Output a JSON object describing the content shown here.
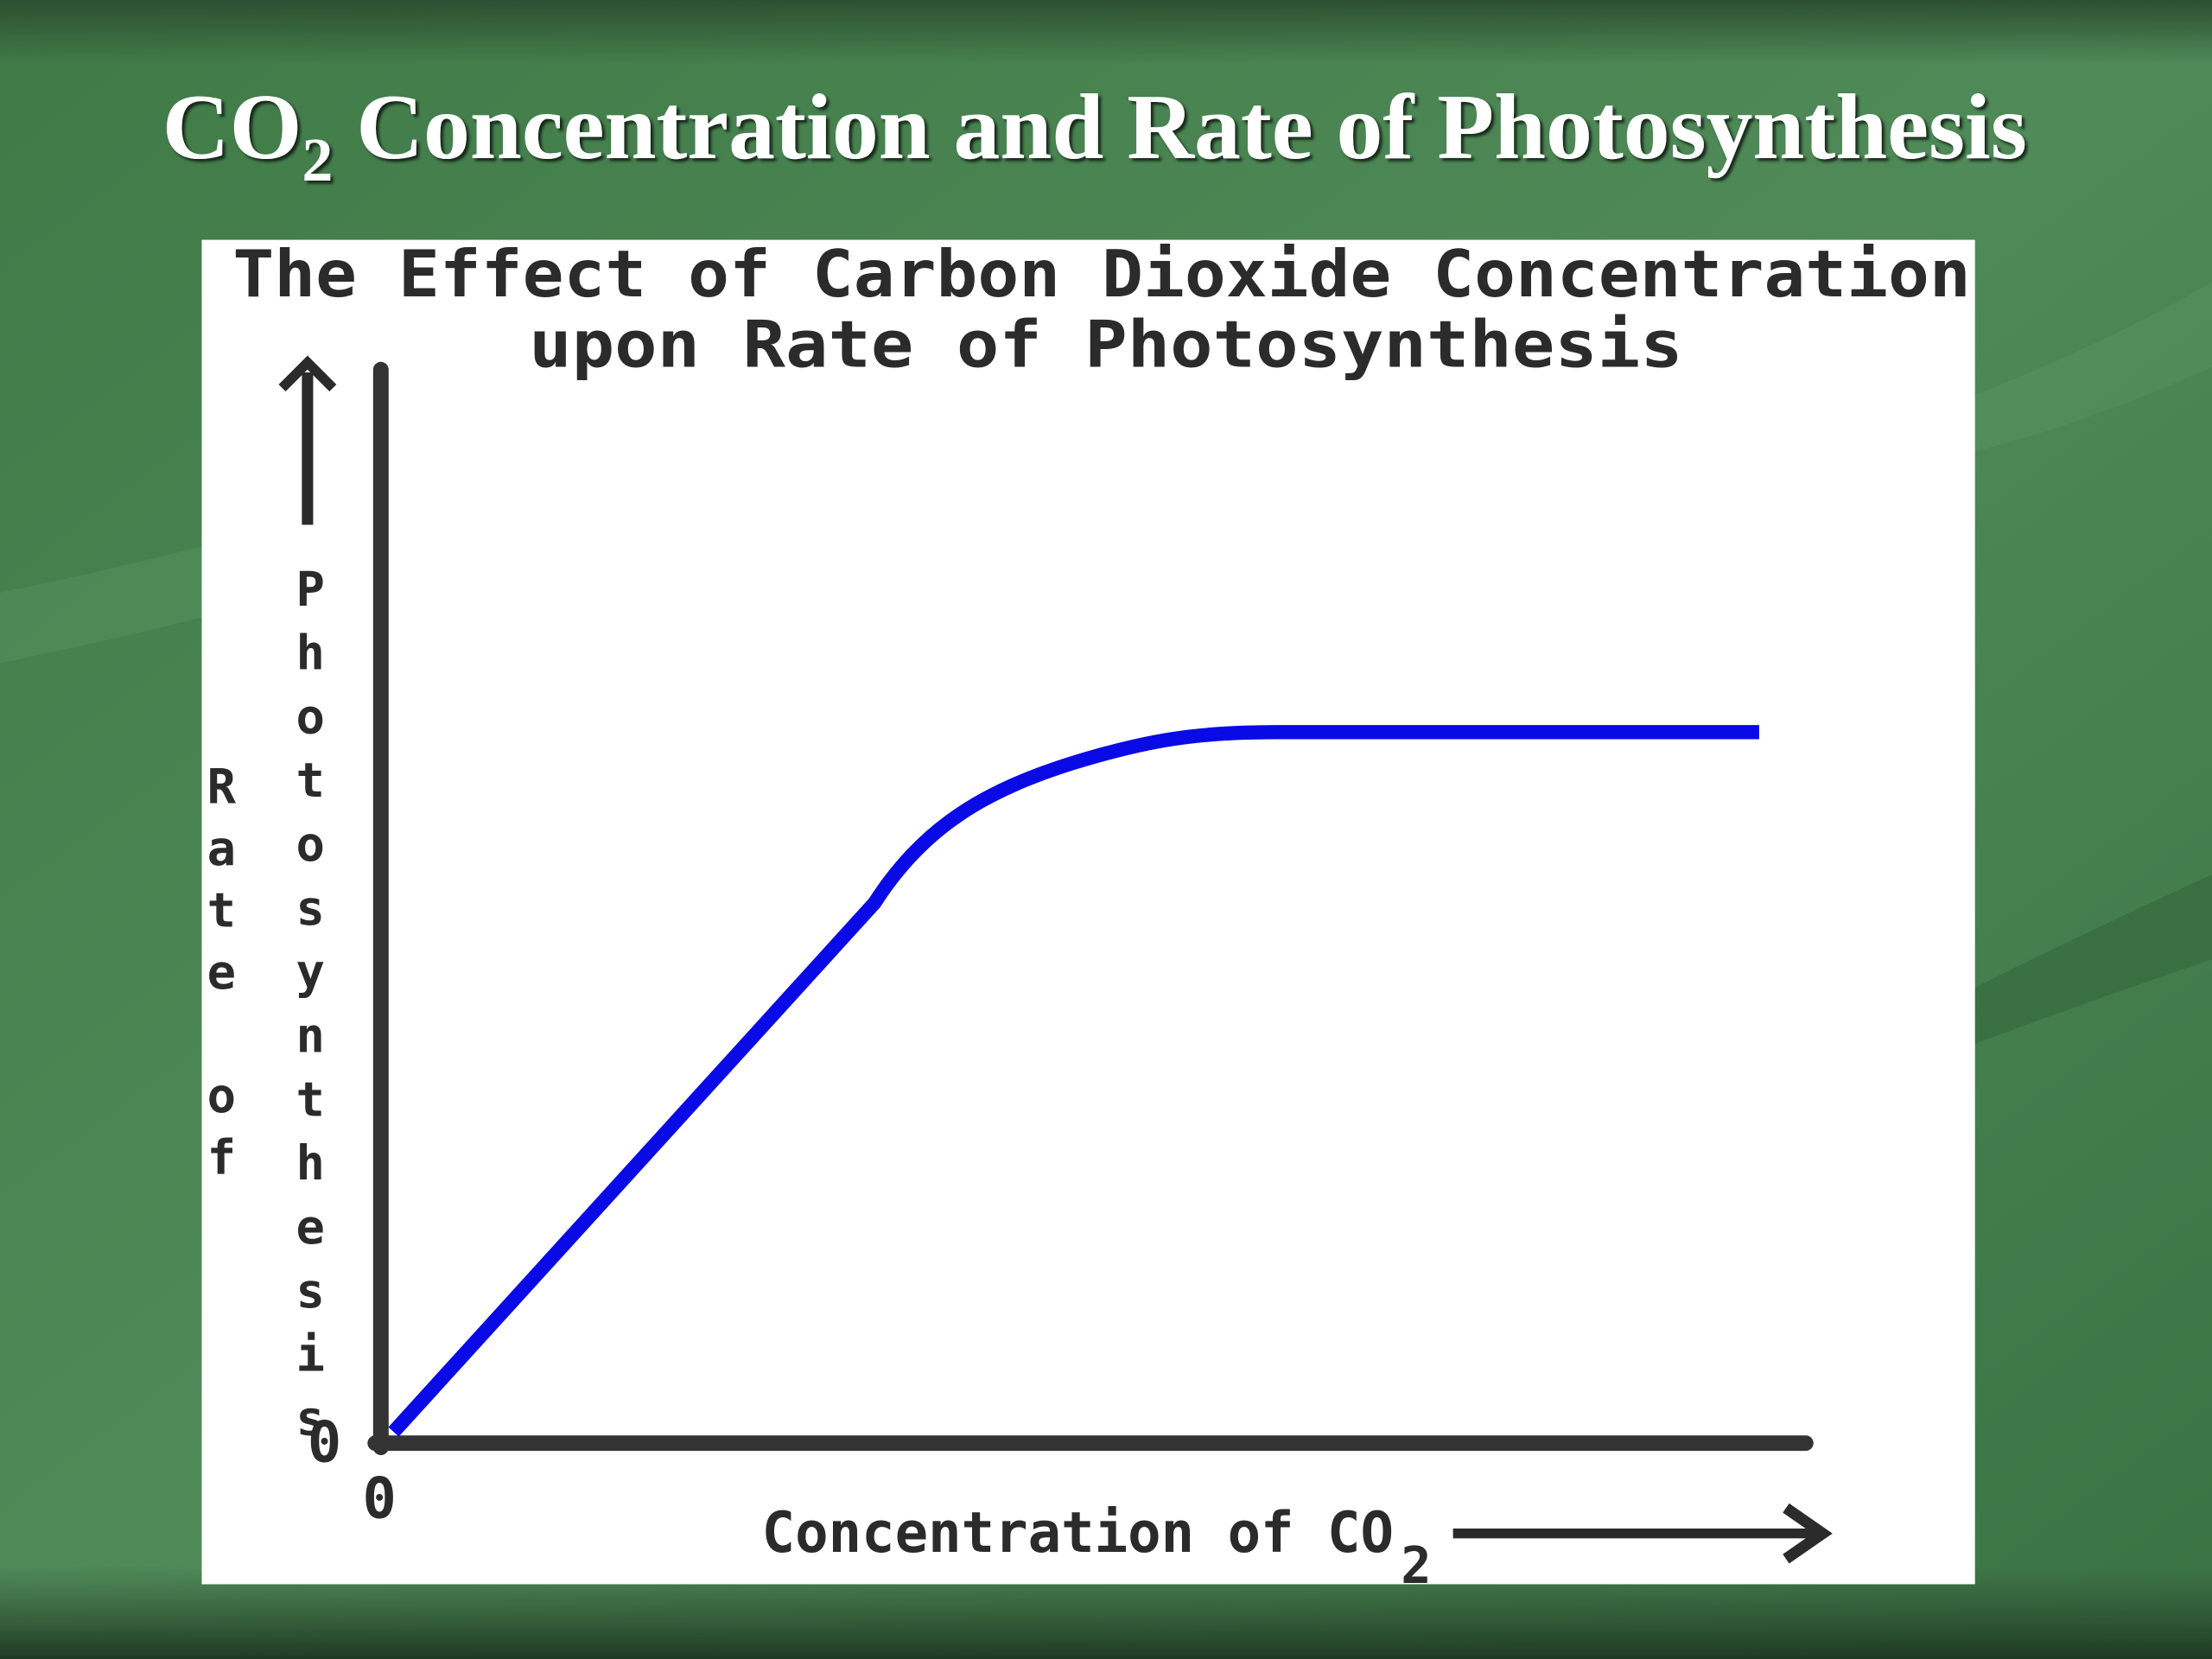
{
  "slide_title": {
    "main": "CO",
    "subscript": "2",
    "rest": " Concentration and Rate of Photosynthesis"
  },
  "chart": {
    "title_lines": [
      "The Effect of Carbon Dioxide Concentration",
      "upon Rate of Photosynthesis"
    ],
    "y_label_lines": [
      "Rate of",
      "Photosynthesis"
    ],
    "x_label": {
      "main": "Concentration of CO",
      "subscript": "2"
    },
    "y_origin_label": "0",
    "x_origin_label": "0"
  }
}
